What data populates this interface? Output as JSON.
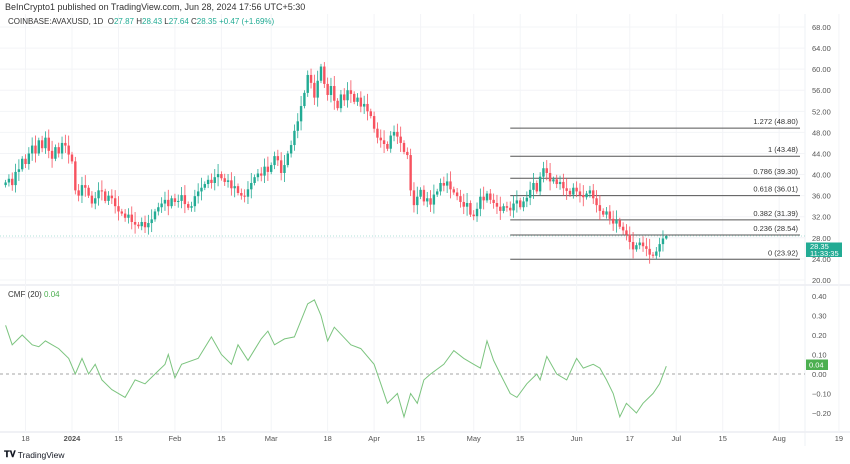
{
  "header": {
    "published": "BeInCrypto1 published on TradingView.com, Jun 28, 2024 17:56 UTC+5:30",
    "symbol": "COINBASE:AVAXUSD, 1D",
    "open_label": "O",
    "open": "27.87",
    "high_label": "H",
    "high": "28.43",
    "low_label": "L",
    "low": "27.64",
    "close_label": "C",
    "close": "28.35",
    "change": "+0.47 (+1.69%)"
  },
  "price_badge": {
    "price": "28.35",
    "countdown": "11:33:35"
  },
  "cmf_badge": "0.04",
  "cmf_legend": {
    "name": "CMF (20)",
    "value": "0.04"
  },
  "footer": {
    "brand": "TradingView"
  },
  "colors": {
    "up": "#22ab94",
    "down": "#f7525f",
    "cmf": "#7cc47f",
    "fib": "#555555",
    "badge": "#22ab94"
  },
  "chart_data": [
    {
      "type": "candlestick",
      "interval": "1D",
      "y_ticks": [
        "68.00",
        "64.00",
        "60.00",
        "56.00",
        "52.00",
        "48.00",
        "44.00",
        "40.00",
        "36.00",
        "32.00",
        "28.00",
        "24.00",
        "20.00"
      ],
      "ylim": [
        20,
        68
      ],
      "x_ticks": [
        {
          "date": "2023-12-18",
          "label": "18"
        },
        {
          "date": "2024-01-01",
          "label": "2024"
        },
        {
          "date": "2024-01-15",
          "label": "15"
        },
        {
          "date": "2024-02-01",
          "label": "Feb"
        },
        {
          "date": "2024-02-15",
          "label": "15"
        },
        {
          "date": "2024-03-01",
          "label": "Mar"
        },
        {
          "date": "2024-03-18",
          "label": "18"
        },
        {
          "date": "2024-04-01",
          "label": "Apr"
        },
        {
          "date": "2024-04-15",
          "label": "15"
        },
        {
          "date": "2024-05-01",
          "label": "May"
        },
        {
          "date": "2024-05-15",
          "label": "15"
        },
        {
          "date": "2024-06-01",
          "label": "Jun"
        },
        {
          "date": "2024-06-17",
          "label": "17"
        },
        {
          "date": "2024-07-01",
          "label": "Jul"
        },
        {
          "date": "2024-07-15",
          "label": "15"
        },
        {
          "date": "2024-08-01",
          "label": "Aug"
        },
        {
          "date": "2024-08-19",
          "label": "19"
        }
      ],
      "closes_by_month": [
        {
          "month": "2023-12",
          "first_day": 12,
          "closes": [
            38.5,
            39.2,
            38,
            40.5,
            41,
            43,
            42,
            44,
            45.5,
            44,
            46.5,
            45,
            47,
            44.5,
            43,
            45.2,
            44,
            46,
            45.5,
            43.8
          ]
        },
        {
          "month": "2024-01",
          "first_day": 1,
          "closes": [
            42.5,
            37,
            36,
            38,
            37.5,
            36,
            34.5,
            35.5,
            37,
            36.8,
            35,
            36,
            35.5,
            34,
            33,
            32.6,
            31.8,
            32.4,
            31,
            30.5,
            30.2,
            31,
            30,
            30.8,
            31.5,
            33,
            33.8,
            34.5,
            35.2,
            34,
            35.5
          ]
        },
        {
          "month": "2024-02",
          "first_day": 1,
          "closes": [
            34.8,
            35,
            36.1,
            34.4,
            33.7,
            34,
            35.9,
            36.8,
            37.5,
            38.2,
            39,
            38.4,
            39.5,
            40.1,
            39.3,
            38.6,
            38.9,
            37.4,
            37.8,
            36.5,
            36,
            35.8,
            37.2,
            38.4,
            39.5,
            40.2,
            39.8,
            41.5,
            40.5
          ]
        },
        {
          "month": "2024-03",
          "first_day": 1,
          "closes": [
            41.8,
            43.5,
            42.7,
            40.3,
            41.8,
            44,
            45.6,
            48.3,
            50.1,
            53,
            55.5,
            58.9,
            57.4,
            54.6,
            57.8,
            60.5,
            57.2,
            55.1,
            56.8,
            54,
            52.6,
            55.2,
            54.1,
            56,
            55.3,
            53.8,
            54.6,
            52.9,
            53.4,
            52,
            51.1
          ]
        },
        {
          "month": "2024-04",
          "first_day": 1,
          "closes": [
            48.7,
            47,
            46.5,
            45.8,
            44.9,
            47.4,
            48.1,
            47.2,
            46,
            44.3,
            43.7,
            37,
            34.2,
            35.8,
            37.1,
            34.9,
            35.5,
            34.3,
            36.2,
            36.8,
            38.4,
            37.9,
            38.7,
            37.2,
            36.6,
            35.9,
            34.8,
            33.9,
            34.6,
            32.4
          ]
        },
        {
          "month": "2024-05",
          "first_day": 1,
          "closes": [
            32.1,
            33.5,
            35.8,
            35.1,
            36.4,
            35.2,
            34.6,
            33.9,
            33.1,
            34,
            33.7,
            33.2,
            34.5,
            35.1,
            33.8,
            34.9,
            35.6,
            37.1,
            38.4,
            36.8,
            39.6,
            41.2,
            40.3,
            38.7,
            39.1,
            38.2,
            38.6,
            37.4,
            36.9,
            36.2,
            37.5
          ]
        },
        {
          "month": "2024-06",
          "first_day": 1,
          "closes": [
            36.8,
            36.1,
            35.7,
            36.4,
            37,
            35.5,
            34.2,
            33.1,
            32.4,
            33,
            31.6,
            30.7,
            31.3,
            30.1,
            29.4,
            28.6,
            27.2,
            25.8,
            26.6,
            27.1,
            26.4,
            25.9,
            24.8,
            24.6,
            25.4,
            26.8,
            27.87,
            28.35
          ]
        }
      ],
      "last_candle": {
        "date": "2024-06-28",
        "open": 27.87,
        "high": 28.43,
        "low": 27.64,
        "close": 28.35
      },
      "fib_levels": [
        {
          "ratio": "1.272",
          "price": 48.8,
          "label": "1.272 (48.80)"
        },
        {
          "ratio": "1",
          "price": 43.48,
          "label": "1 (43.48)"
        },
        {
          "ratio": "0.786",
          "price": 39.3,
          "label": "0.786 (39.30)"
        },
        {
          "ratio": "0.618",
          "price": 36.01,
          "label": "0.618 (36.01)"
        },
        {
          "ratio": "0.382",
          "price": 31.39,
          "label": "0.382 (31.39)"
        },
        {
          "ratio": "0.236",
          "price": 28.54,
          "label": "0.236 (28.54)"
        },
        {
          "ratio": "0",
          "price": 23.92,
          "label": "0 (23.92)"
        }
      ],
      "fib_start_date": "2024-05-12"
    },
    {
      "type": "line",
      "series": [
        {
          "name": "CMF (20)"
        }
      ],
      "y_ticks": [
        "0.40",
        "0.30",
        "0.20",
        "0.10",
        "0.00",
        "−0.10",
        "−0.20"
      ],
      "ylim": [
        -0.27,
        0.43
      ],
      "zero_line": "dashed",
      "points": [
        [
          "2023-12-12",
          0.25
        ],
        [
          "2023-12-14",
          0.15
        ],
        [
          "2023-12-17",
          0.2
        ],
        [
          "2023-12-20",
          0.15
        ],
        [
          "2023-12-22",
          0.14
        ],
        [
          "2023-12-24",
          0.17
        ],
        [
          "2023-12-26",
          0.15
        ],
        [
          "2023-12-28",
          0.13
        ],
        [
          "2023-12-31",
          0.08
        ],
        [
          "2024-01-02",
          0.0
        ],
        [
          "2024-01-04",
          0.08
        ],
        [
          "2024-01-06",
          0.0
        ],
        [
          "2024-01-08",
          0.05
        ],
        [
          "2024-01-10",
          -0.03
        ],
        [
          "2024-01-13",
          -0.08
        ],
        [
          "2024-01-17",
          -0.12
        ],
        [
          "2024-01-20",
          -0.03
        ],
        [
          "2024-01-23",
          -0.05
        ],
        [
          "2024-01-26",
          0.0
        ],
        [
          "2024-01-29",
          0.05
        ],
        [
          "2024-01-30",
          0.1
        ],
        [
          "2024-02-01",
          -0.02
        ],
        [
          "2024-02-03",
          0.05
        ],
        [
          "2024-02-08",
          0.08
        ],
        [
          "2024-02-12",
          0.19
        ],
        [
          "2024-02-15",
          0.1
        ],
        [
          "2024-02-18",
          0.05
        ],
        [
          "2024-02-20",
          0.15
        ],
        [
          "2024-02-23",
          0.07
        ],
        [
          "2024-02-27",
          0.18
        ],
        [
          "2024-02-29",
          0.22
        ],
        [
          "2024-03-02",
          0.15
        ],
        [
          "2024-03-05",
          0.18
        ],
        [
          "2024-03-08",
          0.19
        ],
        [
          "2024-03-12",
          0.36
        ],
        [
          "2024-03-14",
          0.38
        ],
        [
          "2024-03-16",
          0.3
        ],
        [
          "2024-03-18",
          0.17
        ],
        [
          "2024-03-20",
          0.24
        ],
        [
          "2024-03-25",
          0.15
        ],
        [
          "2024-03-28",
          0.13
        ],
        [
          "2024-04-01",
          0.05
        ],
        [
          "2024-04-03",
          -0.05
        ],
        [
          "2024-04-05",
          -0.15
        ],
        [
          "2024-04-08",
          -0.1
        ],
        [
          "2024-04-10",
          -0.22
        ],
        [
          "2024-04-12",
          -0.1
        ],
        [
          "2024-04-14",
          -0.15
        ],
        [
          "2024-04-16",
          -0.03
        ],
        [
          "2024-04-18",
          0.0
        ],
        [
          "2024-04-22",
          0.05
        ],
        [
          "2024-04-25",
          0.12
        ],
        [
          "2024-04-28",
          0.08
        ],
        [
          "2024-05-01",
          0.05
        ],
        [
          "2024-05-03",
          0.03
        ],
        [
          "2024-05-05",
          0.17
        ],
        [
          "2024-05-07",
          0.07
        ],
        [
          "2024-05-09",
          0.0
        ],
        [
          "2024-05-12",
          -0.1
        ],
        [
          "2024-05-14",
          -0.12
        ],
        [
          "2024-05-17",
          -0.05
        ],
        [
          "2024-05-20",
          0.0
        ],
        [
          "2024-05-21",
          -0.03
        ],
        [
          "2024-05-23",
          0.09
        ],
        [
          "2024-05-26",
          0.0
        ],
        [
          "2024-05-29",
          -0.03
        ],
        [
          "2024-06-01",
          0.08
        ],
        [
          "2024-06-03",
          0.03
        ],
        [
          "2024-06-06",
          0.05
        ],
        [
          "2024-06-08",
          0.03
        ],
        [
          "2024-06-10",
          -0.03
        ],
        [
          "2024-06-12",
          -0.1
        ],
        [
          "2024-06-14",
          -0.22
        ],
        [
          "2024-06-16",
          -0.15
        ],
        [
          "2024-06-19",
          -0.2
        ],
        [
          "2024-06-21",
          -0.15
        ],
        [
          "2024-06-24",
          -0.1
        ],
        [
          "2024-06-26",
          -0.05
        ],
        [
          "2024-06-28",
          0.04
        ]
      ]
    }
  ]
}
